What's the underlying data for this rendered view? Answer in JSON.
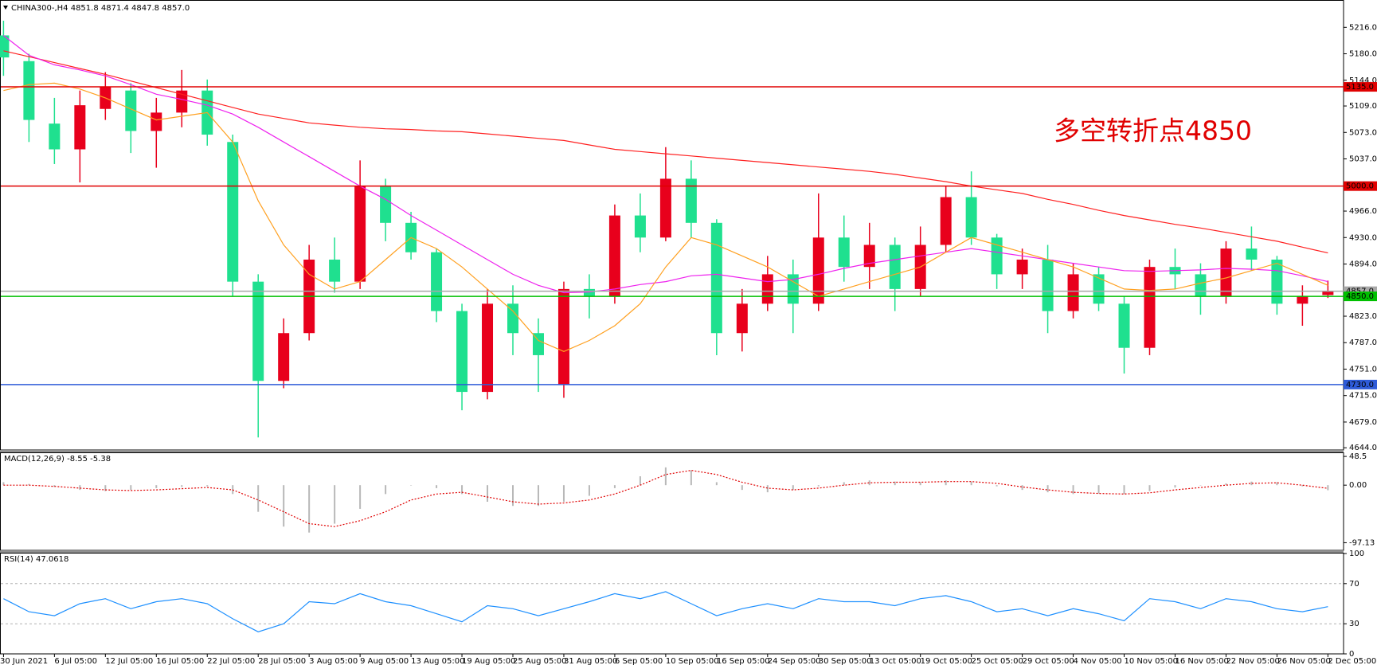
{
  "chart_data": [
    {
      "type": "candlestick",
      "title": "CHINA300-,H4  4851.8 4871.4 4847.8 4857.0",
      "annotation": "多空转折点4850",
      "categories": [
        "30 Jun 2021",
        null,
        "6 Jul 05:00",
        null,
        "12 Jul 05:00",
        null,
        "16 Jul 05:00",
        null,
        "22 Jul 05:00",
        null,
        "28 Jul 05:00",
        null,
        "3 Aug 05:00",
        null,
        "9 Aug 05:00",
        null,
        "13 Aug 05:00",
        null,
        "19 Aug 05:00",
        null,
        "25 Aug 05:00",
        null,
        "31 Aug 05:00",
        null,
        "6 Sep 05:00",
        null,
        "10 Sep 05:00",
        null,
        "16 Sep 05:00",
        null,
        "24 Sep 05:00",
        null,
        "30 Sep 05:00",
        null,
        "13 Oct 05:00",
        null,
        "19 Oct 05:00",
        null,
        "25 Oct 05:00",
        null,
        "29 Oct 05:00",
        null,
        "4 Nov 05:00",
        null,
        "10 Nov 05:00",
        null,
        "16 Nov 05:00",
        null,
        "22 Nov 05:00",
        null,
        "26 Nov 05:00",
        null,
        "2 Dec 05:00"
      ],
      "series": [
        {
          "type": "candlestick",
          "up_color": "#e8001c",
          "down_color": "#1fe08f",
          "open": [
            5205,
            5170,
            5085,
            5050,
            5105,
            5130,
            5075,
            5100,
            5130,
            5060,
            4870,
            4735,
            4800,
            4900,
            4870,
            5000,
            4950,
            4910,
            4830,
            4720,
            4840,
            4800,
            4730,
            4860,
            4850,
            4960,
            4930,
            5010,
            4950,
            4800,
            4840,
            4880,
            4840,
            4930,
            4890,
            4920,
            4860,
            4920,
            4985,
            4930,
            4880,
            4900,
            4830,
            4880,
            4840,
            4780,
            4890,
            4880,
            4850,
            4915,
            4900,
            4840,
            4851.8
          ],
          "high": [
            5225,
            5180,
            5120,
            5130,
            5155,
            5140,
            5120,
            5158,
            5145,
            5070,
            4880,
            4820,
            4920,
            4930,
            5035,
            5010,
            4965,
            4915,
            4840,
            4860,
            4865,
            4820,
            4870,
            4880,
            4975,
            4990,
            5053,
            5035,
            4955,
            4860,
            4905,
            4900,
            4990,
            4960,
            4950,
            4930,
            4945,
            5000,
            5020,
            4935,
            4915,
            4920,
            4895,
            4890,
            4850,
            4900,
            4915,
            4895,
            4925,
            4945,
            4905,
            4865,
            4871.4
          ],
          "low": [
            5150,
            5060,
            5030,
            5005,
            5090,
            5045,
            5025,
            5080,
            5055,
            4850,
            4658,
            4725,
            4790,
            4855,
            4860,
            4925,
            4900,
            4815,
            4695,
            4710,
            4770,
            4720,
            4712,
            4820,
            4840,
            4910,
            4925,
            4930,
            4770,
            4775,
            4830,
            4800,
            4830,
            4870,
            4860,
            4830,
            4850,
            4910,
            4920,
            4860,
            4860,
            4800,
            4820,
            4830,
            4745,
            4770,
            4860,
            4825,
            4840,
            4885,
            4825,
            4810,
            4847.8
          ],
          "close": [
            5175,
            5090,
            5050,
            5110,
            5135,
            5075,
            5100,
            5130,
            5070,
            4870,
            4735,
            4800,
            4900,
            4870,
            5000,
            4950,
            4910,
            4830,
            4720,
            4840,
            4800,
            4770,
            4860,
            4850,
            4960,
            4930,
            5010,
            4950,
            4800,
            4840,
            4880,
            4840,
            4930,
            4890,
            4920,
            4860,
            4920,
            4985,
            4930,
            4880,
            4900,
            4830,
            4880,
            4840,
            4780,
            4890,
            4880,
            4850,
            4915,
            4900,
            4840,
            4850,
            4857
          ]
        },
        {
          "type": "line",
          "color": "#ff2020",
          "values": [
            5184,
            5176,
            5168,
            5160,
            5152,
            5143,
            5134,
            5125,
            5116,
            5107,
            5098,
            5092,
            5086,
            5083,
            5080,
            5078,
            5077,
            5075,
            5074,
            5071,
            5068,
            5065,
            5062,
            5056,
            5050,
            5047,
            5044,
            5041,
            5038,
            5035,
            5032,
            5029,
            5026,
            5023,
            5020,
            5016,
            5011,
            5006,
            5000,
            4995,
            4990,
            4982,
            4975,
            4967,
            4960,
            4954,
            4948,
            4943,
            4937,
            4931,
            4925,
            4917,
            4909
          ]
        },
        {
          "type": "line",
          "color": "#ee22ee",
          "values": [
            5205,
            5178,
            5165,
            5158,
            5150,
            5138,
            5125,
            5118,
            5110,
            5098,
            5080,
            5060,
            5040,
            5020,
            5000,
            4982,
            4960,
            4940,
            4920,
            4900,
            4880,
            4865,
            4855,
            4856,
            4860,
            4866,
            4870,
            4878,
            4880,
            4875,
            4870,
            4873,
            4880,
            4888,
            4895,
            4900,
            4905,
            4910,
            4915,
            4910,
            4905,
            4900,
            4895,
            4890,
            4885,
            4884,
            4885,
            4886,
            4888,
            4887,
            4885,
            4878,
            4870
          ]
        },
        {
          "type": "line",
          "color": "#ffa020",
          "values": [
            5130,
            5138,
            5140,
            5132,
            5120,
            5105,
            5090,
            5095,
            5100,
            5060,
            4980,
            4920,
            4880,
            4860,
            4870,
            4900,
            4930,
            4915,
            4890,
            4860,
            4830,
            4790,
            4775,
            4790,
            4810,
            4840,
            4890,
            4930,
            4920,
            4905,
            4890,
            4870,
            4850,
            4860,
            4870,
            4880,
            4890,
            4910,
            4930,
            4920,
            4910,
            4900,
            4890,
            4875,
            4860,
            4858,
            4860,
            4868,
            4875,
            4885,
            4895,
            4880,
            4865
          ]
        }
      ],
      "hlines": [
        {
          "value": 4857,
          "label": "4857.0",
          "color": "#a8a8a8"
        },
        {
          "value": 5135,
          "label": "5135.0",
          "color": "#e00000"
        },
        {
          "value": 5000,
          "label": "5000.0",
          "color": "#e00000"
        },
        {
          "value": 4850,
          "label": "4850.0",
          "color": "#00c000"
        },
        {
          "value": 4730,
          "label": "4730.0",
          "color": "#2e5bd8"
        }
      ],
      "ylim": [
        4641,
        5251
      ],
      "yticks": [
        {
          "value": 5216,
          "label": "5216.0"
        },
        {
          "value": 5180,
          "label": "5180.0"
        },
        {
          "value": 5144,
          "label": "5144.0"
        },
        {
          "value": 5109,
          "label": "5109.0"
        },
        {
          "value": 5073,
          "label": "5073.0"
        },
        {
          "value": 5037,
          "label": "5037.0"
        },
        {
          "value": 4966,
          "label": "4966.0"
        },
        {
          "value": 4930,
          "label": "4930.0"
        },
        {
          "value": 4894,
          "label": "4894.0"
        },
        {
          "value": 4823,
          "label": "4823.0"
        },
        {
          "value": 4787,
          "label": "4787.0"
        },
        {
          "value": 4751,
          "label": "4751.0"
        },
        {
          "value": 4715,
          "label": "4715.0"
        },
        {
          "value": 4679,
          "label": "4679.0"
        },
        {
          "value": 4644,
          "label": "4644.0"
        }
      ]
    },
    {
      "type": "macd",
      "title": "MACD(12,26,9) -8.55 -5.38",
      "series": [
        {
          "type": "bar",
          "color": "#b8b8b8",
          "values": [
            5,
            2,
            -3,
            -8,
            -10,
            -8,
            -5,
            -3,
            -2,
            -15,
            -45,
            -70,
            -80,
            -65,
            -40,
            -15,
            0,
            -5,
            -15,
            -28,
            -35,
            -35,
            -28,
            -18,
            -5,
            15,
            30,
            25,
            5,
            -8,
            -12,
            -8,
            -2,
            5,
            8,
            6,
            5,
            8,
            6,
            -2,
            -8,
            -12,
            -15,
            -14,
            -15,
            -10,
            -4,
            0,
            3,
            6,
            5,
            -2,
            -8.55
          ]
        },
        {
          "type": "line",
          "color": "#e00000",
          "dash": true,
          "values": [
            0,
            0,
            -2,
            -5,
            -8,
            -9,
            -8,
            -6,
            -4,
            -8,
            -25,
            -45,
            -65,
            -70,
            -60,
            -45,
            -25,
            -15,
            -12,
            -20,
            -28,
            -32,
            -30,
            -25,
            -15,
            0,
            18,
            25,
            18,
            5,
            -5,
            -8,
            -5,
            0,
            4,
            5,
            5,
            6,
            6,
            3,
            -3,
            -8,
            -12,
            -14,
            -15,
            -13,
            -8,
            -4,
            0,
            3,
            4,
            0,
            -5.38
          ]
        }
      ],
      "ylim": [
        -110,
        54
      ],
      "yticks": [
        48.5,
        {
          "value": 0,
          "label": "0.00"
        },
        -97.13
      ]
    },
    {
      "type": "rsi",
      "title": "RSI(14) 47.0618",
      "series": [
        {
          "type": "line",
          "color": "#1e90ff",
          "values": [
            55,
            42,
            38,
            50,
            55,
            45,
            52,
            55,
            50,
            35,
            22,
            30,
            52,
            50,
            60,
            52,
            48,
            40,
            32,
            48,
            45,
            38,
            45,
            52,
            60,
            55,
            62,
            50,
            38,
            45,
            50,
            45,
            55,
            52,
            52,
            48,
            55,
            58,
            52,
            42,
            45,
            38,
            45,
            40,
            33,
            55,
            52,
            45,
            55,
            52,
            45,
            42,
            47.0618
          ]
        }
      ],
      "levels": [
        70,
        30
      ],
      "ylim": [
        0,
        100
      ],
      "yticks": [
        100,
        70,
        30,
        0
      ]
    }
  ]
}
